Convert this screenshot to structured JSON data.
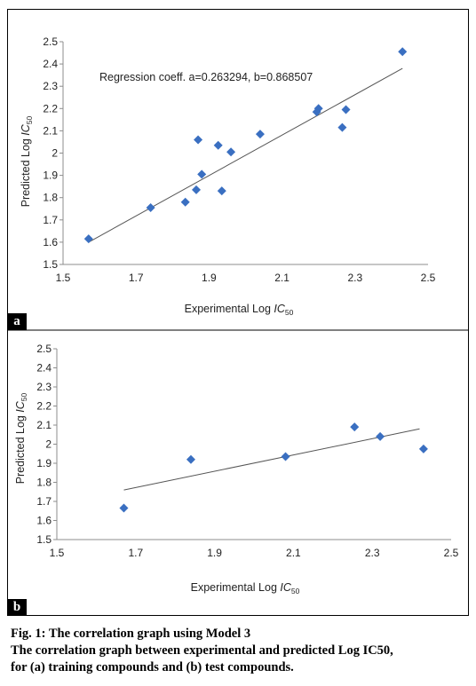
{
  "panel_a": {
    "tag": "a",
    "xlabel_main": "Experimental Log ",
    "xlabel_ic": "IC",
    "xlabel_sub": "50",
    "ylabel_main": "Predicted Log ",
    "ylabel_ic": "IC",
    "ylabel_sub": "50",
    "annotation": "Regression coeff. a=0.263294, b=0.868507"
  },
  "panel_b": {
    "tag": "b",
    "xlabel_main": "Experimental Log ",
    "xlabel_ic": "IC",
    "xlabel_sub": "50",
    "ylabel_main": "Predicted Log ",
    "ylabel_ic": "IC",
    "ylabel_sub": "50"
  },
  "caption": {
    "line1": "Fig. 1:  The correlation graph using Model 3",
    "line2": "The correlation graph between experimental and predicted Log IC50,",
    "line3": "for (a) training compounds and (b) test compounds."
  },
  "chart_data": [
    {
      "type": "scatter",
      "xlabel": "Experimental Log IC50",
      "ylabel": "Predicted Log IC50",
      "xlim": [
        1.5,
        2.5
      ],
      "ylim": [
        1.5,
        2.5
      ],
      "xticks": [
        "1.5",
        "1.7",
        "1.9",
        "2.1",
        "2.3",
        "2.5"
      ],
      "yticks": [
        "1.5",
        "1.6",
        "1.7",
        "1.8",
        "1.9",
        "2",
        "2.1",
        "2.2",
        "2.3",
        "2.4",
        "2.5"
      ],
      "grid": false,
      "marker_color": "#3a6fc1",
      "points": [
        [
          1.57,
          1.615
        ],
        [
          1.74,
          1.755
        ],
        [
          1.835,
          1.78
        ],
        [
          1.865,
          1.835
        ],
        [
          1.87,
          2.06
        ],
        [
          1.88,
          1.905
        ],
        [
          1.925,
          2.035
        ],
        [
          1.935,
          1.83
        ],
        [
          1.96,
          2.005
        ],
        [
          2.04,
          2.085
        ],
        [
          2.195,
          2.185
        ],
        [
          2.2,
          2.2
        ],
        [
          2.265,
          2.115
        ],
        [
          2.275,
          2.195
        ],
        [
          2.43,
          2.455
        ]
      ],
      "trendline": {
        "x": [
          1.57,
          2.43
        ],
        "y": [
          1.6,
          2.38
        ]
      },
      "annotation": "Regression coeff. a=0.263294, b=0.868507"
    },
    {
      "type": "scatter",
      "xlabel": "Experimental Log IC50",
      "ylabel": "Predicted Log IC50",
      "xlim": [
        1.5,
        2.5
      ],
      "ylim": [
        1.5,
        2.5
      ],
      "xticks": [
        "1.5",
        "1.7",
        "1.9",
        "2.1",
        "2.3",
        "2.5"
      ],
      "yticks": [
        "1.5",
        "1.6",
        "1.7",
        "1.8",
        "1.9",
        "2",
        "2.1",
        "2.2",
        "2.3",
        "2.4",
        "2.5"
      ],
      "grid": false,
      "marker_color": "#3a6fc1",
      "points": [
        [
          1.67,
          1.665
        ],
        [
          1.84,
          1.92
        ],
        [
          2.08,
          1.935
        ],
        [
          2.255,
          2.09
        ],
        [
          2.32,
          2.04
        ],
        [
          2.43,
          1.975
        ]
      ],
      "trendline": {
        "x": [
          1.67,
          2.42
        ],
        "y": [
          1.76,
          2.08
        ]
      }
    }
  ]
}
